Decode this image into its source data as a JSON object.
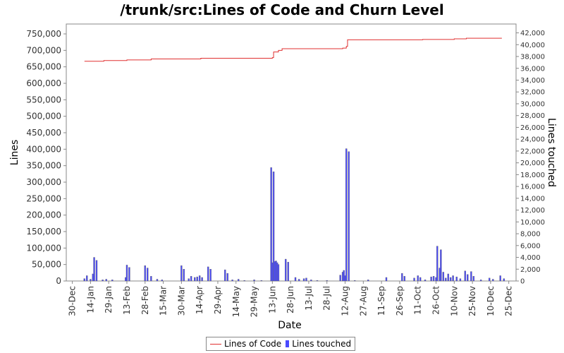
{
  "chart_data": {
    "type": "line",
    "title": "/trunk/src:Lines of Code and Churn Level",
    "xlabel": "Date",
    "ylabel": "Lines",
    "y2label": "Lines touched",
    "ylim": [
      0,
      780000
    ],
    "y2lim": [
      0,
      43500
    ],
    "x_date_range": [
      "2009-12-25",
      "2010-12-31"
    ],
    "x_ticks": [
      "30-Dec",
      "14-Jan",
      "29-Jan",
      "13-Feb",
      "28-Feb",
      "15-Mar",
      "30-Mar",
      "14-Apr",
      "29-Apr",
      "14-May",
      "29-May",
      "13-Jun",
      "28-Jun",
      "13-Jul",
      "28-Jul",
      "12-Aug",
      "27-Aug",
      "11-Sep",
      "26-Sep",
      "11-Oct",
      "26-Oct",
      "10-Nov",
      "25-Nov",
      "10-Dec",
      "25-Dec"
    ],
    "y_ticks": [
      "0",
      "50,000",
      "100,000",
      "150,000",
      "200,000",
      "250,000",
      "300,000",
      "350,000",
      "400,000",
      "450,000",
      "500,000",
      "550,000",
      "600,000",
      "650,000",
      "700,000",
      "750,000"
    ],
    "y2_ticks": [
      "0",
      "2,000",
      "4,000",
      "6,000",
      "8,000",
      "10,000",
      "12,000",
      "14,000",
      "16,000",
      "18,000",
      "20,000",
      "22,000",
      "24,000",
      "26,000",
      "28,000",
      "30,000",
      "32,000",
      "34,000",
      "36,000",
      "38,000",
      "40,000",
      "42,000"
    ],
    "series": [
      {
        "name": "Lines of Code",
        "color": "#e03030",
        "kind": "step-line",
        "axis": "left",
        "points": [
          [
            "2010-01-09",
            667000
          ],
          [
            "2010-01-25",
            669000
          ],
          [
            "2010-02-13",
            671000
          ],
          [
            "2010-03-05",
            674000
          ],
          [
            "2010-04-15",
            676000
          ],
          [
            "2010-06-13",
            678000
          ],
          [
            "2010-06-14",
            695000
          ],
          [
            "2010-06-18",
            700000
          ],
          [
            "2010-06-21",
            705000
          ],
          [
            "2010-08-10",
            707000
          ],
          [
            "2010-08-13",
            712000
          ],
          [
            "2010-08-14",
            732000
          ],
          [
            "2010-10-15",
            733000
          ],
          [
            "2010-11-10",
            735000
          ],
          [
            "2010-11-20",
            737000
          ],
          [
            "2010-12-19",
            738000
          ]
        ]
      },
      {
        "name": "Lines touched",
        "color": "#4a4aff",
        "kind": "bar",
        "axis": "right",
        "points": [
          [
            "2010-01-09",
            400
          ],
          [
            "2010-01-11",
            900
          ],
          [
            "2010-01-14",
            300
          ],
          [
            "2010-01-16",
            1200
          ],
          [
            "2010-01-17",
            4000
          ],
          [
            "2010-01-19",
            3500
          ],
          [
            "2010-01-24",
            200
          ],
          [
            "2010-01-27",
            300
          ],
          [
            "2010-02-01",
            200
          ],
          [
            "2010-02-12",
            600
          ],
          [
            "2010-02-13",
            2700
          ],
          [
            "2010-02-15",
            2300
          ],
          [
            "2010-02-28",
            2600
          ],
          [
            "2010-03-02",
            2200
          ],
          [
            "2010-03-05",
            800
          ],
          [
            "2010-03-10",
            300
          ],
          [
            "2010-03-14",
            200
          ],
          [
            "2010-03-30",
            2600
          ],
          [
            "2010-04-01",
            2000
          ],
          [
            "2010-04-05",
            400
          ],
          [
            "2010-04-07",
            800
          ],
          [
            "2010-04-10",
            600
          ],
          [
            "2010-04-12",
            700
          ],
          [
            "2010-04-14",
            900
          ],
          [
            "2010-04-16",
            600
          ],
          [
            "2010-04-21",
            2400
          ],
          [
            "2010-04-23",
            2000
          ],
          [
            "2010-05-05",
            1900
          ],
          [
            "2010-05-07",
            1300
          ],
          [
            "2010-05-11",
            200
          ],
          [
            "2010-05-16",
            300
          ],
          [
            "2010-05-21",
            100
          ],
          [
            "2010-05-29",
            200
          ],
          [
            "2010-06-04",
            100
          ],
          [
            "2010-06-12",
            19200
          ],
          [
            "2010-06-13",
            3100
          ],
          [
            "2010-06-14",
            18500
          ],
          [
            "2010-06-15",
            3300
          ],
          [
            "2010-06-16",
            3400
          ],
          [
            "2010-06-17",
            3100
          ],
          [
            "2010-06-18",
            2800
          ],
          [
            "2010-06-24",
            3700
          ],
          [
            "2010-06-26",
            3200
          ],
          [
            "2010-07-02",
            600
          ],
          [
            "2010-07-05",
            300
          ],
          [
            "2010-07-09",
            400
          ],
          [
            "2010-07-11",
            500
          ],
          [
            "2010-07-15",
            200
          ],
          [
            "2010-07-20",
            100
          ],
          [
            "2010-07-28",
            100
          ],
          [
            "2010-08-08",
            1000
          ],
          [
            "2010-08-10",
            1500
          ],
          [
            "2010-08-11",
            1800
          ],
          [
            "2010-08-12",
            900
          ],
          [
            "2010-08-13",
            22400
          ],
          [
            "2010-08-15",
            21900
          ],
          [
            "2010-08-20",
            100
          ],
          [
            "2010-08-31",
            200
          ],
          [
            "2010-09-15",
            600
          ],
          [
            "2010-09-28",
            1300
          ],
          [
            "2010-09-30",
            800
          ],
          [
            "2010-10-08",
            500
          ],
          [
            "2010-10-11",
            900
          ],
          [
            "2010-10-13",
            600
          ],
          [
            "2010-10-17",
            200
          ],
          [
            "2010-10-22",
            700
          ],
          [
            "2010-10-24",
            800
          ],
          [
            "2010-10-26",
            600
          ],
          [
            "2010-10-27",
            5900
          ],
          [
            "2010-10-29",
            2200
          ],
          [
            "2010-10-30",
            5300
          ],
          [
            "2010-11-01",
            1500
          ],
          [
            "2010-11-03",
            500
          ],
          [
            "2010-11-05",
            1200
          ],
          [
            "2010-11-07",
            600
          ],
          [
            "2010-11-09",
            900
          ],
          [
            "2010-11-12",
            700
          ],
          [
            "2010-11-15",
            400
          ],
          [
            "2010-11-19",
            1700
          ],
          [
            "2010-11-21",
            1100
          ],
          [
            "2010-11-24",
            1600
          ],
          [
            "2010-11-26",
            800
          ],
          [
            "2010-12-02",
            200
          ],
          [
            "2010-12-09",
            500
          ],
          [
            "2010-12-12",
            300
          ],
          [
            "2010-12-18",
            900
          ],
          [
            "2010-12-21",
            400
          ]
        ]
      }
    ],
    "legend": "bottom",
    "grid": false
  }
}
